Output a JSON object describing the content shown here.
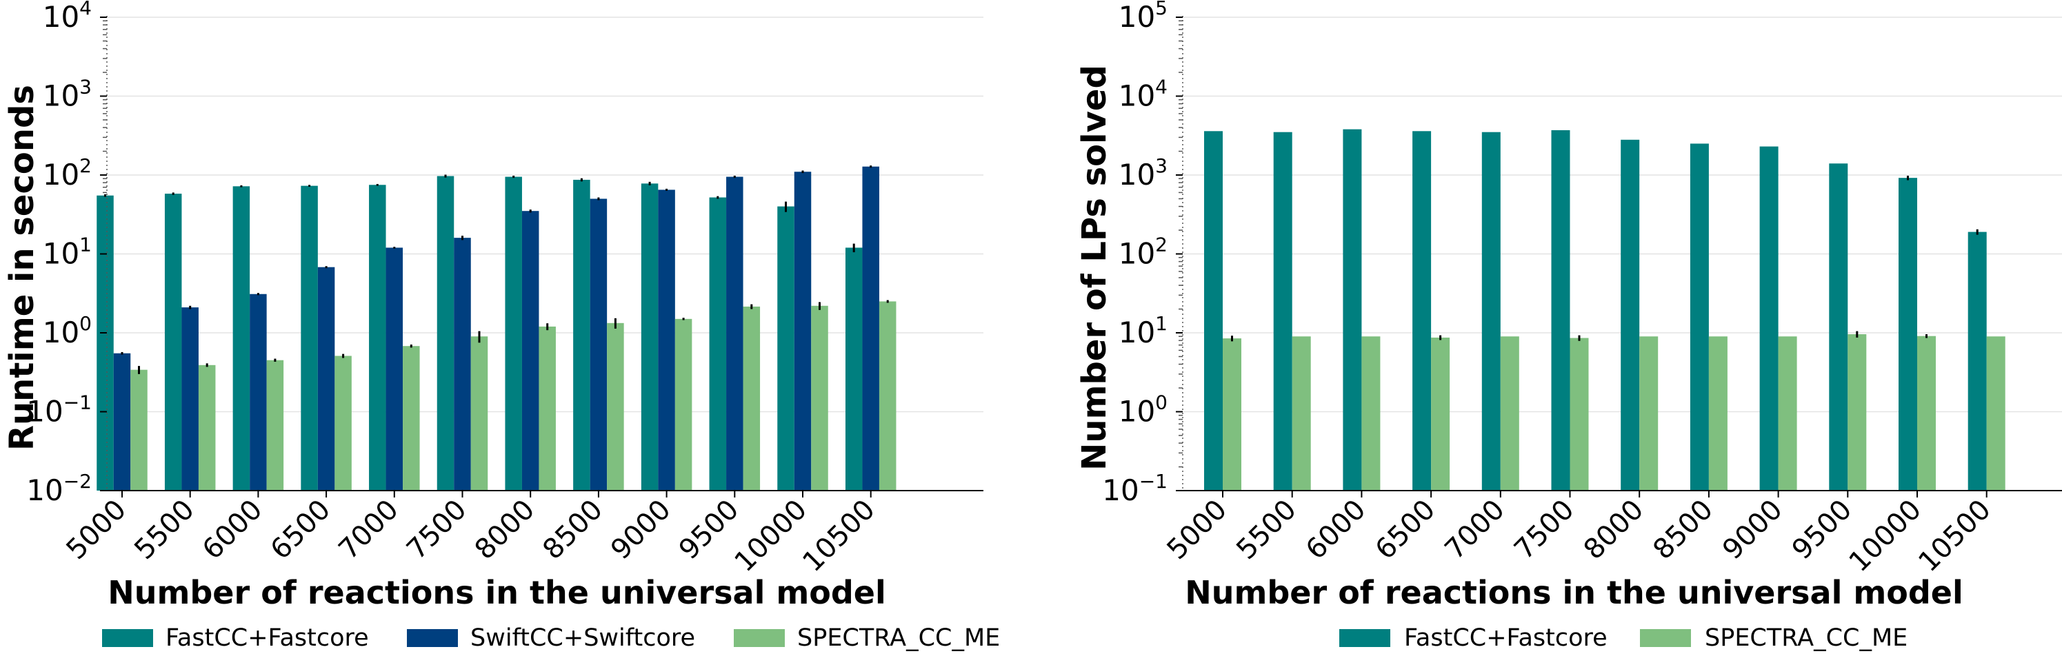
{
  "chart_data": [
    {
      "type": "bar",
      "yscale": "log",
      "ylim": [
        0.01,
        10000
      ],
      "xlabel": "Number of reactions in the universal model",
      "ylabel": "Runtime in seconds",
      "grid": "horizontal",
      "legend_position": "bottom",
      "categories": [
        "5000",
        "5500",
        "6000",
        "6500",
        "7000",
        "7500",
        "8000",
        "8500",
        "9000",
        "9500",
        "10000",
        "10500"
      ],
      "yticks": [
        {
          "value": 0.01,
          "base": "10",
          "exp": "−2"
        },
        {
          "value": 0.1,
          "base": "10",
          "exp": "−1"
        },
        {
          "value": 1,
          "base": "10",
          "exp": "0"
        },
        {
          "value": 10,
          "base": "10",
          "exp": "1"
        },
        {
          "value": 100,
          "base": "10",
          "exp": "2"
        },
        {
          "value": 1000,
          "base": "10",
          "exp": "3"
        },
        {
          "value": 10000,
          "base": "10",
          "exp": "4"
        }
      ],
      "series": [
        {
          "name": "FastCC+Fastcore",
          "color": "#007f7f",
          "values": [
            55,
            58,
            72,
            73,
            75,
            97,
            95,
            87,
            78,
            52,
            40,
            12
          ],
          "errors": [
            2,
            2,
            2,
            2,
            2,
            4,
            3,
            4,
            4,
            2,
            6,
            1.5
          ]
        },
        {
          "name": "SwiftCC+Swiftcore",
          "color": "#003f7f",
          "values": [
            0.55,
            2.1,
            3.1,
            6.8,
            12,
            16,
            35,
            50,
            65,
            95,
            110,
            128
          ],
          "errors": [
            0.02,
            0.1,
            0.1,
            0.2,
            0.3,
            1,
            1.5,
            2,
            2,
            3,
            4,
            4
          ]
        },
        {
          "name": "SPECTRA_CC_ME",
          "color": "#7fbf7f",
          "values": [
            0.34,
            0.39,
            0.45,
            0.51,
            0.68,
            0.9,
            1.2,
            1.33,
            1.5,
            2.15,
            2.2,
            2.5
          ],
          "errors": [
            0.04,
            0.02,
            0.02,
            0.03,
            0.03,
            0.15,
            0.12,
            0.2,
            0.05,
            0.15,
            0.25,
            0.1
          ]
        }
      ]
    },
    {
      "type": "bar",
      "yscale": "log",
      "ylim": [
        0.1,
        100000
      ],
      "xlabel": "Number of reactions in the universal model",
      "ylabel": "Number of LPs solved",
      "grid": "horizontal",
      "legend_position": "bottom",
      "categories": [
        "5000",
        "5500",
        "6000",
        "6500",
        "7000",
        "7500",
        "8000",
        "8500",
        "9000",
        "9500",
        "10000",
        "10500"
      ],
      "yticks": [
        {
          "value": 0.1,
          "base": "10",
          "exp": "−1"
        },
        {
          "value": 1,
          "base": "10",
          "exp": "0"
        },
        {
          "value": 10,
          "base": "10",
          "exp": "1"
        },
        {
          "value": 100,
          "base": "10",
          "exp": "2"
        },
        {
          "value": 1000,
          "base": "10",
          "exp": "3"
        },
        {
          "value": 10000,
          "base": "10",
          "exp": "4"
        },
        {
          "value": 100000,
          "base": "10",
          "exp": "5"
        }
      ],
      "series": [
        {
          "name": "FastCC+Fastcore",
          "color": "#007f7f",
          "values": [
            3600,
            3500,
            3800,
            3600,
            3500,
            3700,
            2800,
            2500,
            2300,
            1400,
            920,
            190
          ],
          "errors": [
            0,
            0,
            0,
            0,
            0,
            0,
            0,
            0,
            0,
            0,
            60,
            15
          ]
        },
        {
          "name": "SPECTRA_CC_ME",
          "color": "#7fbf7f",
          "values": [
            8.5,
            9,
            9,
            8.7,
            9,
            8.6,
            9,
            9,
            9,
            9.6,
            9.1,
            9
          ],
          "errors": [
            0.7,
            0,
            0,
            0.6,
            0,
            0.7,
            0,
            0,
            0,
            0.9,
            0.5,
            0
          ]
        }
      ]
    }
  ]
}
